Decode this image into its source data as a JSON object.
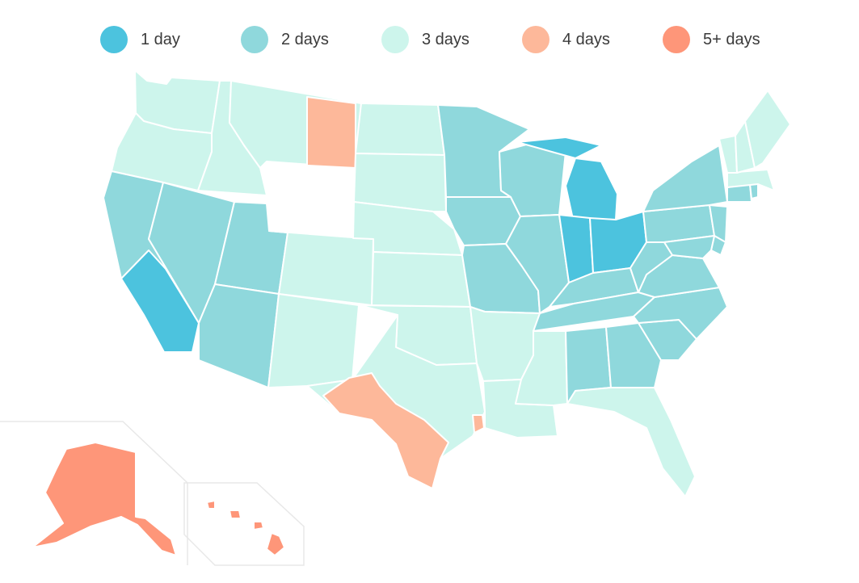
{
  "legend": [
    {
      "label": "1 day",
      "color": "#4cc3de"
    },
    {
      "label": "2 days",
      "color": "#8fd8dc"
    },
    {
      "label": "3 days",
      "color": "#cdf5ec"
    },
    {
      "label": "4 days",
      "color": "#fdb89a"
    },
    {
      "label": "5+ days",
      "color": "#fe9679"
    }
  ],
  "states": {
    "WA": 3,
    "OR": 3,
    "CA": 2,
    "CA-LA": 1,
    "NV": 2,
    "ID": 3,
    "MT": 3,
    "WY": 4,
    "UT": 2,
    "AZ": 2,
    "CO": 3,
    "NM": 3,
    "ND": 3,
    "SD": 3,
    "NE": 3,
    "KS": 3,
    "OK": 3,
    "TX": 3,
    "TX-W": 4,
    "TX-E": 4,
    "MN": 2,
    "IA": 2,
    "MO": 2,
    "AR": 3,
    "LA": 3,
    "WI": 2,
    "IL": 2,
    "MI": 1,
    "MI-UP": 1,
    "IN": 1,
    "OH": 1,
    "KY": 2,
    "TN": 2,
    "MS": 3,
    "AL": 2,
    "GA": 2,
    "FL": 3,
    "SC": 2,
    "NC": 2,
    "VA": 2,
    "WV": 2,
    "PA": 2,
    "NY": 2,
    "NJ": 2,
    "DE": 2,
    "MD": 2,
    "CT": 2,
    "RI": 2,
    "MA": 3,
    "VT": 3,
    "NH": 3,
    "ME": 3,
    "AK": 5,
    "HI": 5
  }
}
